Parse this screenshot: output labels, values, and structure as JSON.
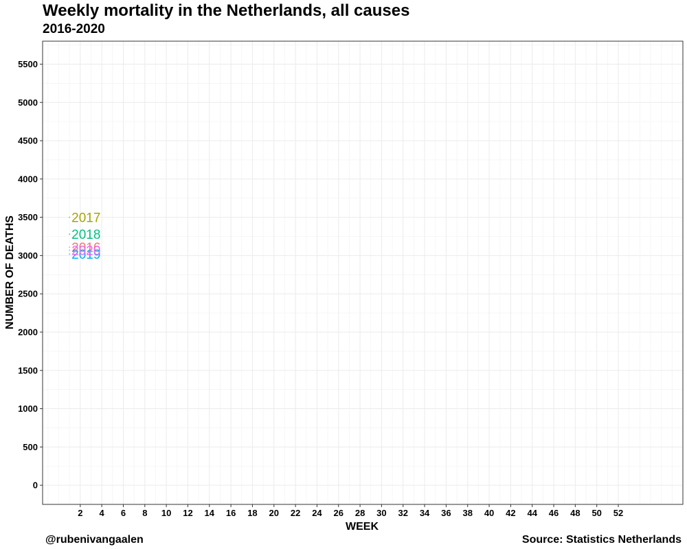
{
  "chart_data": {
    "type": "line",
    "title": "Weekly mortality in the Netherlands, all causes",
    "subtitle": "2016-2020",
    "xlabel": "WEEK",
    "ylabel": "NUMBER OF DEATHS",
    "xlim": [
      -1.5,
      58
    ],
    "ylim": [
      -250,
      5800
    ],
    "x_ticks": [
      2,
      4,
      6,
      8,
      10,
      12,
      14,
      16,
      18,
      20,
      22,
      24,
      26,
      28,
      30,
      32,
      34,
      36,
      38,
      40,
      42,
      44,
      46,
      48,
      50,
      52
    ],
    "y_ticks": [
      0,
      500,
      1000,
      1500,
      2000,
      2500,
      3000,
      3500,
      4000,
      4500,
      5000,
      5500
    ],
    "grid": true,
    "legend": "direct labels at line ends",
    "series": [
      {
        "name": "2016",
        "color": "#F8766D",
        "x": [
          1
        ],
        "y": [
          3110
        ]
      },
      {
        "name": "2017",
        "color": "#A3A500",
        "x": [
          1
        ],
        "y": [
          3500
        ]
      },
      {
        "name": "2018",
        "color": "#00BF7D",
        "x": [
          1
        ],
        "y": [
          3280
        ]
      },
      {
        "name": "2019",
        "color": "#00B0F6",
        "x": [
          1
        ],
        "y": [
          3020
        ]
      },
      {
        "name": "2020",
        "color": "#E76BF3",
        "x": [
          1
        ],
        "y": [
          3070
        ]
      }
    ]
  },
  "caption_left": "@rubenivangaalen",
  "caption_right": "Source: Statistics Netherlands"
}
